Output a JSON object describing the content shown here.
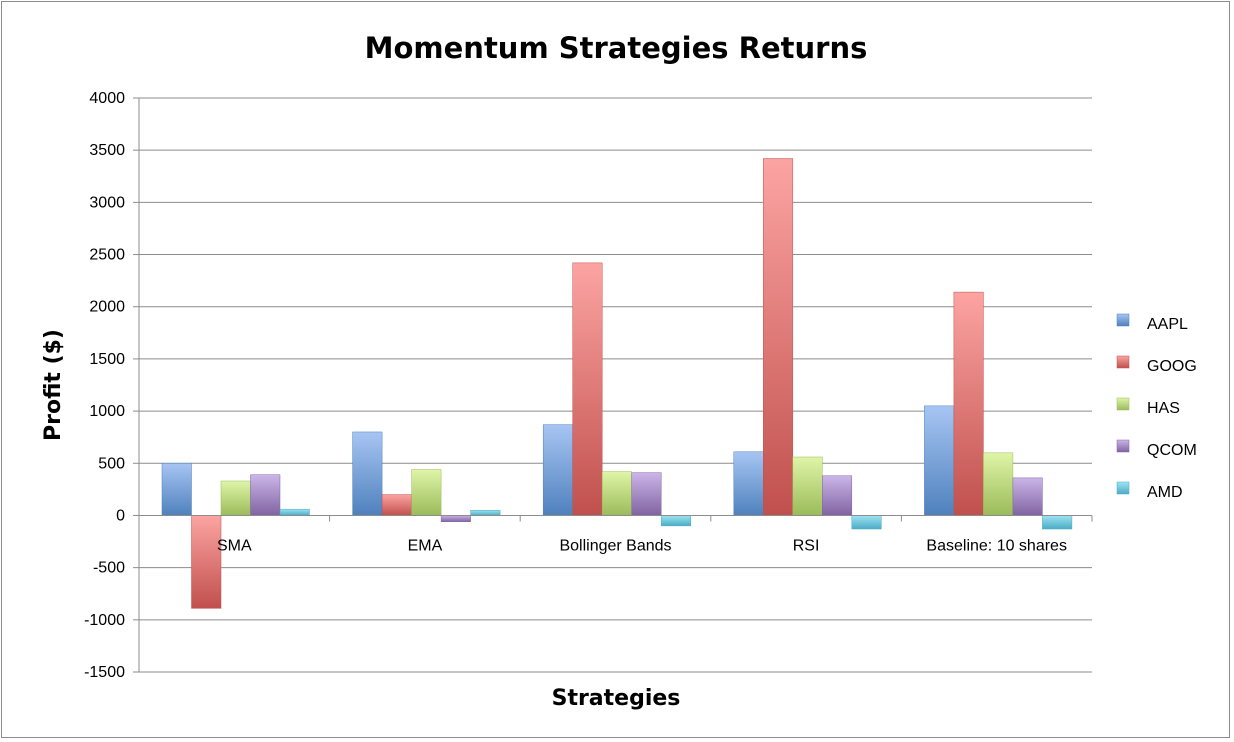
{
  "chart_data": {
    "type": "bar",
    "title": "Momentum Strategies Returns",
    "xlabel": "Strategies",
    "ylabel": "Profit ($)",
    "ylim": [
      -1500,
      4000
    ],
    "ytick_step": 500,
    "ytick_labels": [
      "-1500",
      "-1000",
      "-500",
      "0",
      "500",
      "1000",
      "1500",
      "2000",
      "2500",
      "3000",
      "3500",
      "4000"
    ],
    "grid": true,
    "legend_position": "right",
    "categories": [
      "SMA",
      "EMA",
      "Bollinger Bands",
      "RSI",
      "Baseline: 10 shares"
    ],
    "series": [
      {
        "name": "AAPL",
        "color": "#4f81bd",
        "light": "#a7c5f3",
        "values": [
          500,
          800,
          870,
          610,
          1050
        ]
      },
      {
        "name": "GOOG",
        "color": "#c0504d",
        "light": "#fca4a2",
        "values": [
          -890,
          200,
          2420,
          3420,
          2140
        ]
      },
      {
        "name": "HAS",
        "color": "#9bbb59",
        "light": "#dff5a8",
        "values": [
          330,
          440,
          420,
          560,
          600
        ]
      },
      {
        "name": "QCOM",
        "color": "#8064a2",
        "light": "#cbb5e8",
        "values": [
          390,
          -60,
          410,
          380,
          360
        ]
      },
      {
        "name": "AMD",
        "color": "#4bacc6",
        "light": "#9ee3f3",
        "values": [
          60,
          50,
          -100,
          -130,
          -130
        ]
      }
    ]
  }
}
